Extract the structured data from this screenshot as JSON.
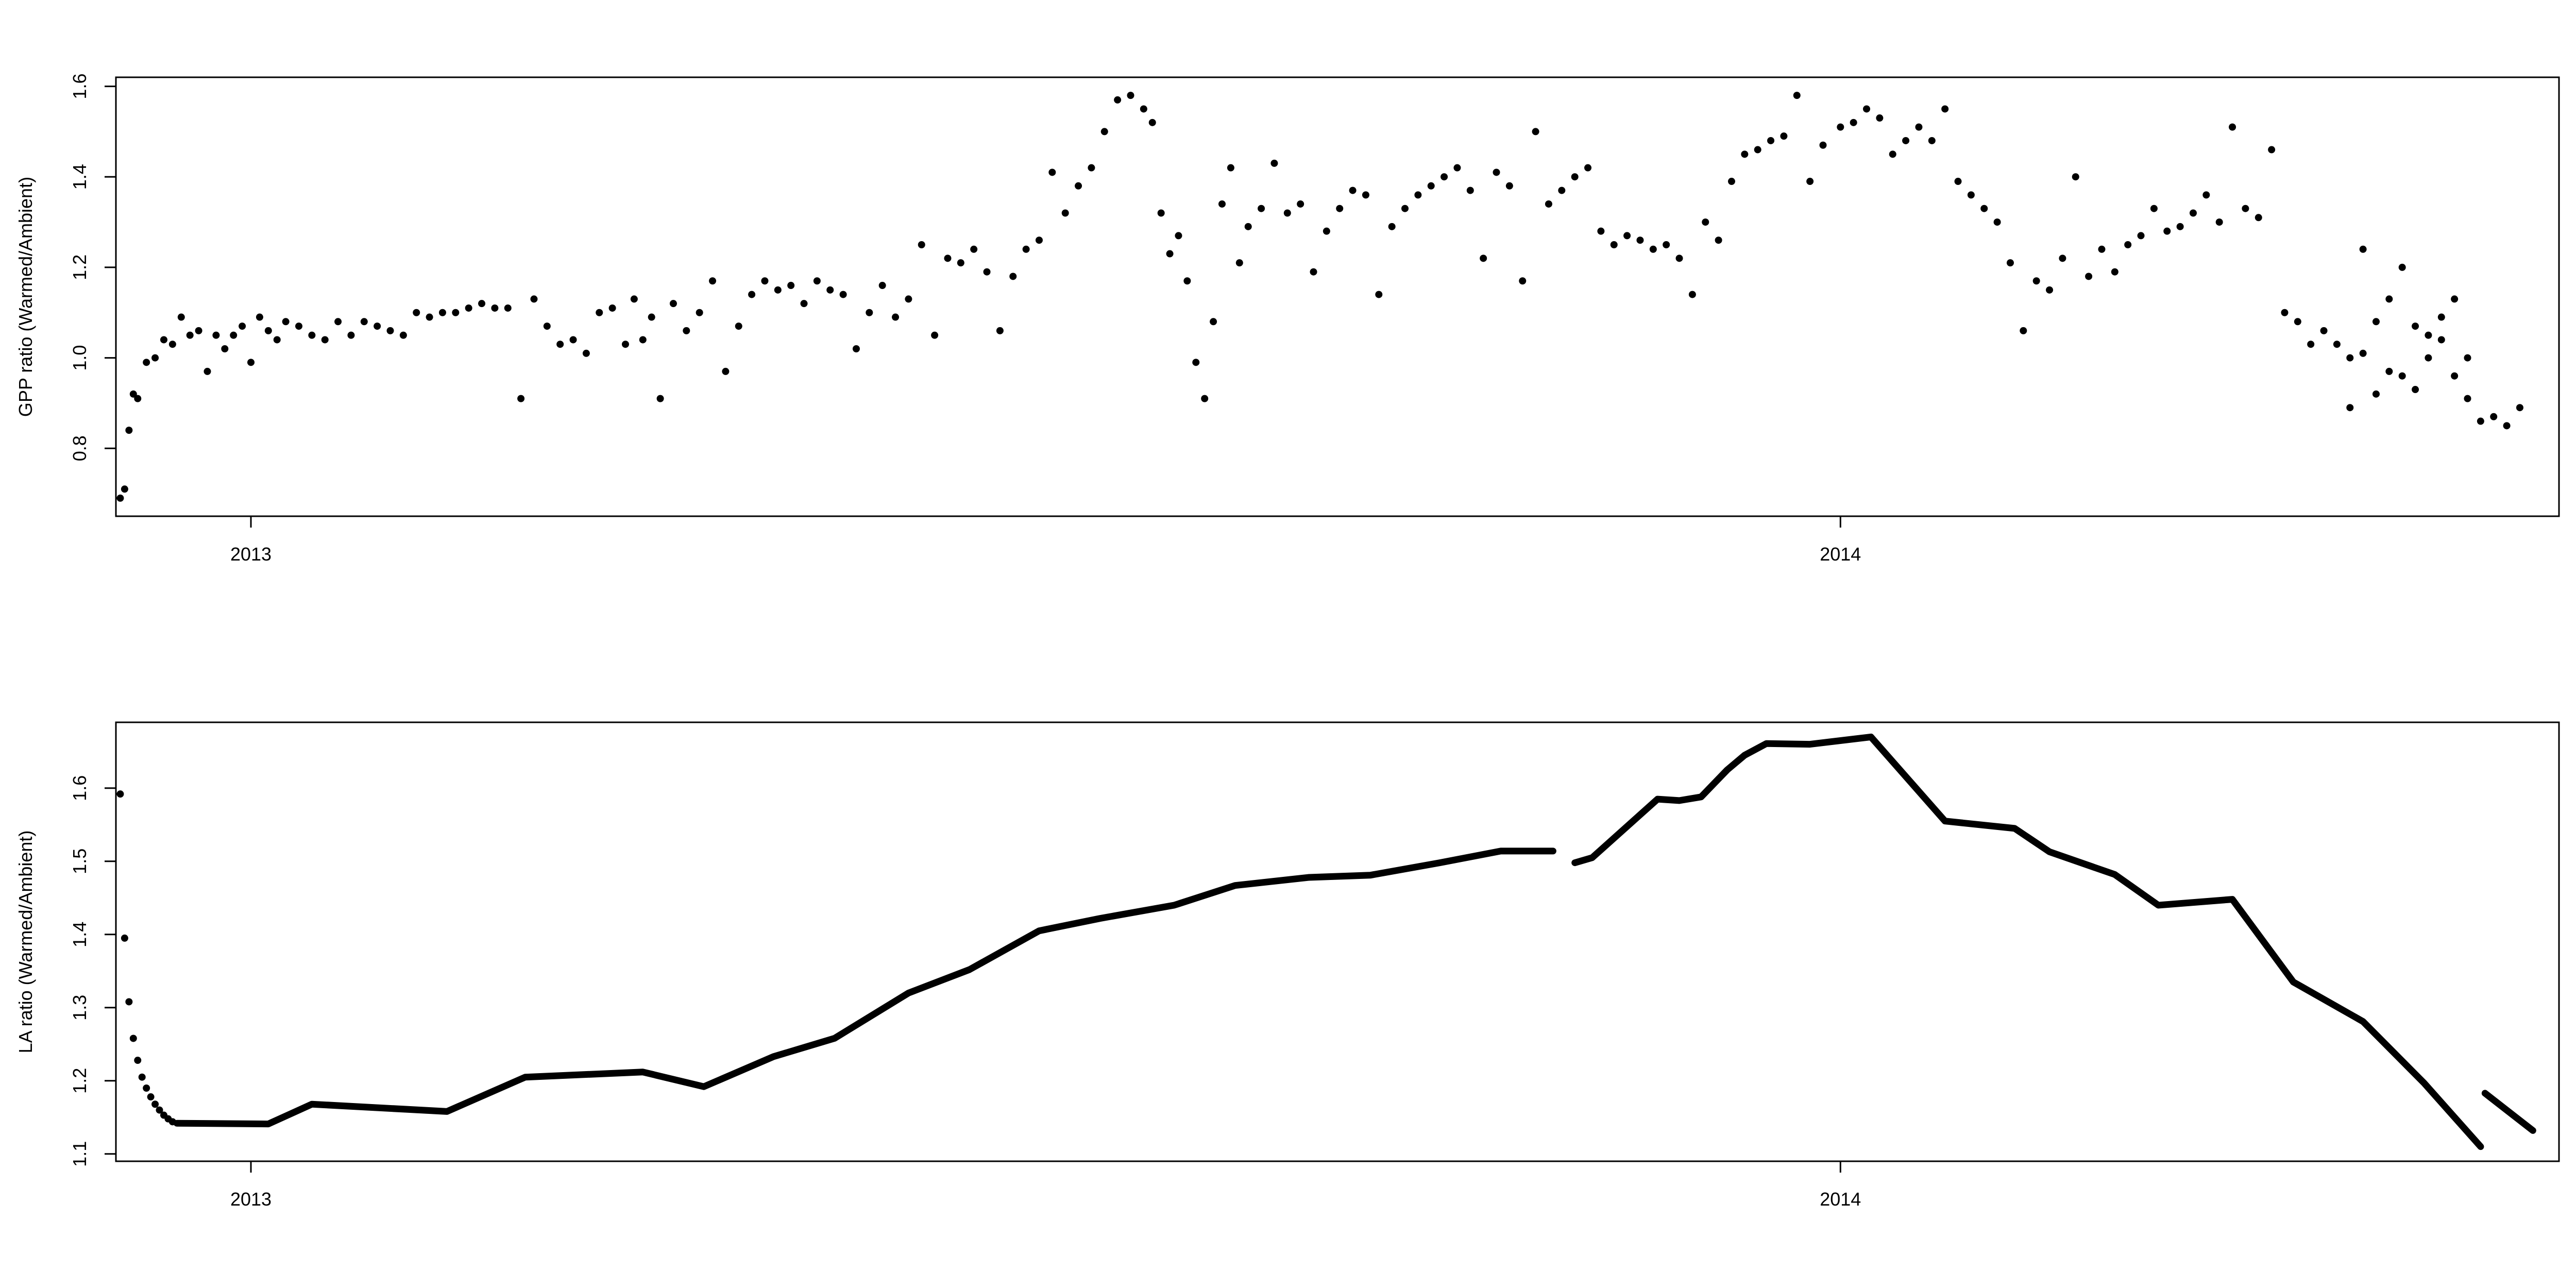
{
  "chart_data": [
    {
      "type": "scatter",
      "title": "",
      "xlabel": "",
      "ylabel": "GPP ratio (Warmed/Ambient)",
      "x_tick_labels": [
        "2013",
        "2014"
      ],
      "y_tick_labels": [
        "0.8",
        "1.0",
        "1.2",
        "1.4",
        "1.6"
      ],
      "xlim": [
        "2012-12-01",
        "2014-06-15"
      ],
      "ylim": [
        0.65,
        1.62
      ],
      "grid": false,
      "legend": "none",
      "point_color": "#000000",
      "series": [
        {
          "x": [
            "2012-12-02",
            "2012-12-03",
            "2012-12-04",
            "2012-12-05",
            "2012-12-06",
            "2012-12-08",
            "2012-12-10",
            "2012-12-12",
            "2012-12-14",
            "2012-12-16",
            "2012-12-18",
            "2012-12-20",
            "2012-12-22",
            "2012-12-24",
            "2012-12-26",
            "2012-12-28",
            "2012-12-30",
            "2013-01-01",
            "2013-01-03",
            "2013-01-05",
            "2013-01-07",
            "2013-01-09",
            "2013-01-12",
            "2013-01-15",
            "2013-01-18",
            "2013-01-21",
            "2013-01-24",
            "2013-01-27",
            "2013-01-30",
            "2013-02-02",
            "2013-02-05",
            "2013-02-08",
            "2013-02-11",
            "2013-02-14",
            "2013-02-17",
            "2013-02-20",
            "2013-02-23",
            "2013-02-26",
            "2013-03-01",
            "2013-03-04",
            "2013-03-07",
            "2013-03-10",
            "2013-03-13",
            "2013-03-16",
            "2013-03-19",
            "2013-03-22",
            "2013-03-25",
            "2013-03-28",
            "2013-03-30",
            "2013-04-01",
            "2013-04-03",
            "2013-04-05",
            "2013-04-08",
            "2013-04-11",
            "2013-04-14",
            "2013-04-17",
            "2013-04-20",
            "2013-04-23",
            "2013-04-26",
            "2013-04-29",
            "2013-05-02",
            "2013-05-05",
            "2013-05-08",
            "2013-05-11",
            "2013-05-14",
            "2013-05-17",
            "2013-05-20",
            "2013-05-23",
            "2013-05-26",
            "2013-05-29",
            "2013-06-01",
            "2013-06-04",
            "2013-06-07",
            "2013-06-10",
            "2013-06-13",
            "2013-06-16",
            "2013-06-19",
            "2013-06-22",
            "2013-06-25",
            "2013-06-28",
            "2013-07-01",
            "2013-07-04",
            "2013-07-07",
            "2013-07-10",
            "2013-07-13",
            "2013-07-16",
            "2013-07-19",
            "2013-07-22",
            "2013-07-25",
            "2013-07-27",
            "2013-07-29",
            "2013-07-31",
            "2013-08-02",
            "2013-08-04",
            "2013-08-06",
            "2013-08-08",
            "2013-08-10",
            "2013-08-12",
            "2013-08-14",
            "2013-08-16",
            "2013-08-18",
            "2013-08-21",
            "2013-08-24",
            "2013-08-27",
            "2013-08-30",
            "2013-09-02",
            "2013-09-05",
            "2013-09-08",
            "2013-09-11",
            "2013-09-14",
            "2013-09-17",
            "2013-09-20",
            "2013-09-23",
            "2013-09-26",
            "2013-09-29",
            "2013-10-02",
            "2013-10-05",
            "2013-10-08",
            "2013-10-11",
            "2013-10-14",
            "2013-10-17",
            "2013-10-20",
            "2013-10-23",
            "2013-10-26",
            "2013-10-29",
            "2013-11-01",
            "2013-11-04",
            "2013-11-07",
            "2013-11-10",
            "2013-11-13",
            "2013-11-16",
            "2013-11-19",
            "2013-11-22",
            "2013-11-25",
            "2013-11-28",
            "2013-12-01",
            "2013-12-04",
            "2013-12-07",
            "2013-12-10",
            "2013-12-13",
            "2013-12-16",
            "2013-12-19",
            "2013-12-22",
            "2013-12-25",
            "2013-12-28",
            "2014-01-01",
            "2014-01-04",
            "2014-01-07",
            "2014-01-10",
            "2014-01-13",
            "2014-01-16",
            "2014-01-19",
            "2014-01-22",
            "2014-01-25",
            "2014-01-28",
            "2014-01-31",
            "2014-02-03",
            "2014-02-06",
            "2014-02-09",
            "2014-02-12",
            "2014-02-15",
            "2014-02-18",
            "2014-02-21",
            "2014-02-24",
            "2014-02-27",
            "2014-03-02",
            "2014-03-05",
            "2014-03-08",
            "2014-03-11",
            "2014-03-14",
            "2014-03-17",
            "2014-03-20",
            "2014-03-23",
            "2014-03-26",
            "2014-03-29",
            "2014-04-01",
            "2014-04-04",
            "2014-04-07",
            "2014-04-10",
            "2014-04-13",
            "2014-04-16",
            "2014-04-19",
            "2014-04-22",
            "2014-04-25",
            "2014-04-28",
            "2014-05-01",
            "2014-05-04",
            "2014-05-07",
            "2014-05-10",
            "2014-05-13",
            "2014-05-16",
            "2014-05-19",
            "2014-05-22",
            "2014-05-25"
          ],
          "y": [
            0.69,
            0.71,
            0.84,
            0.92,
            0.91,
            0.99,
            1.0,
            1.04,
            1.03,
            1.09,
            1.05,
            1.06,
            0.97,
            1.05,
            1.02,
            1.05,
            1.07,
            0.99,
            1.09,
            1.06,
            1.04,
            1.08,
            1.07,
            1.05,
            1.04,
            1.08,
            1.05,
            1.08,
            1.07,
            1.06,
            1.05,
            1.1,
            1.09,
            1.1,
            1.1,
            1.11,
            1.12,
            1.11,
            1.11,
            0.91,
            1.13,
            1.07,
            1.03,
            1.04,
            1.01,
            1.1,
            1.11,
            1.03,
            1.13,
            1.04,
            1.09,
            0.91,
            1.12,
            1.06,
            1.1,
            1.17,
            0.97,
            1.07,
            1.14,
            1.17,
            1.15,
            1.16,
            1.12,
            1.17,
            1.15,
            1.14,
            1.02,
            1.1,
            1.16,
            1.09,
            1.13,
            1.25,
            1.05,
            1.22,
            1.21,
            1.24,
            1.19,
            1.06,
            1.18,
            1.24,
            1.26,
            1.41,
            1.32,
            1.38,
            1.42,
            1.5,
            1.57,
            1.58,
            1.55,
            1.52,
            1.32,
            1.23,
            1.27,
            1.17,
            0.99,
            0.91,
            1.08,
            1.34,
            1.42,
            1.21,
            1.29,
            1.33,
            1.43,
            1.32,
            1.34,
            1.19,
            1.28,
            1.33,
            1.37,
            1.36,
            1.14,
            1.29,
            1.33,
            1.36,
            1.38,
            1.4,
            1.42,
            1.37,
            1.22,
            1.41,
            1.38,
            1.17,
            1.5,
            1.34,
            1.37,
            1.4,
            1.42,
            1.28,
            1.25,
            1.27,
            1.26,
            1.24,
            1.25,
            1.22,
            1.14,
            1.3,
            1.26,
            1.39,
            1.45,
            1.46,
            1.48,
            1.49,
            1.58,
            1.39,
            1.47,
            1.51,
            1.52,
            1.55,
            1.53,
            1.45,
            1.48,
            1.51,
            1.48,
            1.55,
            1.39,
            1.36,
            1.33,
            1.3,
            1.21,
            1.06,
            1.17,
            1.15,
            1.22,
            1.4,
            1.18,
            1.24,
            1.19,
            1.25,
            1.27,
            1.33,
            1.28,
            1.29,
            1.32,
            1.36,
            1.3,
            1.51,
            1.33,
            1.31,
            1.46,
            1.1,
            1.08,
            1.03,
            1.06,
            1.03,
            1.0,
            1.24,
            1.08,
            1.13,
            1.2,
            1.07,
            1.05,
            1.09,
            1.13,
            1.0
          ]
        },
        {
          "x": [
            "2014-04-28",
            "2014-05-01",
            "2014-05-04",
            "2014-05-07",
            "2014-05-10",
            "2014-05-13",
            "2014-05-16",
            "2014-05-19",
            "2014-05-22",
            "2014-05-25",
            "2014-05-28",
            "2014-05-31",
            "2014-06-03",
            "2014-06-06"
          ],
          "y": [
            0.89,
            1.01,
            0.92,
            0.97,
            0.96,
            0.93,
            1.0,
            1.04,
            0.96,
            0.91,
            0.86,
            0.87,
            0.85,
            0.89
          ]
        }
      ]
    },
    {
      "type": "line",
      "title": "",
      "xlabel": "",
      "ylabel": "LA ratio (Warmed/Ambient)",
      "x_tick_labels": [
        "2013",
        "2014"
      ],
      "y_tick_labels": [
        "1.1",
        "1.2",
        "1.3",
        "1.4",
        "1.5",
        "1.6"
      ],
      "xlim": [
        "2012-12-01",
        "2014-06-15"
      ],
      "ylim": [
        1.09,
        1.69
      ],
      "grid": false,
      "legend": "none",
      "line_color": "#000000",
      "series": [
        {
          "x": [
            "2012-12-02",
            "2012-12-03",
            "2012-12-04",
            "2012-12-05",
            "2012-12-06",
            "2012-12-07",
            "2012-12-08",
            "2012-12-09",
            "2012-12-10",
            "2012-12-11",
            "2012-12-12",
            "2012-12-13",
            "2012-12-14"
          ],
          "y": [
            1.592,
            1.395,
            1.308,
            1.258,
            1.228,
            1.205,
            1.19,
            1.178,
            1.168,
            1.16,
            1.153,
            1.148,
            1.144
          ]
        },
        {
          "x": [
            "2012-12-15",
            "2013-01-05",
            "2013-01-15",
            "2013-02-15",
            "2013-03-05",
            "2013-04-01",
            "2013-04-15",
            "2013-05-01",
            "2013-05-15",
            "2013-06-01",
            "2013-06-15",
            "2013-07-01",
            "2013-07-15",
            "2013-08-01",
            "2013-08-15",
            "2013-09-01",
            "2013-09-15",
            "2013-10-01",
            "2013-10-15",
            "2013-10-27"
          ],
          "y": [
            1.142,
            1.141,
            1.168,
            1.158,
            1.205,
            1.212,
            1.192,
            1.233,
            1.258,
            1.32,
            1.352,
            1.405,
            1.422,
            1.44,
            1.467,
            1.478,
            1.481,
            1.498,
            1.514,
            1.514
          ]
        },
        {
          "x": [
            "2013-11-01",
            "2013-11-05",
            "2013-11-20",
            "2013-11-25",
            "2013-11-30",
            "2013-12-06",
            "2013-12-10",
            "2013-12-15",
            "2013-12-25",
            "2014-01-08",
            "2014-01-25",
            "2014-02-10",
            "2014-02-18",
            "2014-03-05",
            "2014-03-15",
            "2014-04-01",
            "2014-04-15",
            "2014-05-01",
            "2014-05-15",
            "2014-05-28"
          ],
          "y": [
            1.498,
            1.505,
            1.585,
            1.583,
            1.588,
            1.625,
            1.645,
            1.661,
            1.66,
            1.67,
            1.555,
            1.545,
            1.513,
            1.482,
            1.44,
            1.448,
            1.335,
            1.281,
            1.197,
            1.11
          ]
        },
        {
          "x": [
            "2014-05-29",
            "2014-06-09"
          ],
          "y": [
            1.183,
            1.132
          ]
        }
      ]
    }
  ]
}
